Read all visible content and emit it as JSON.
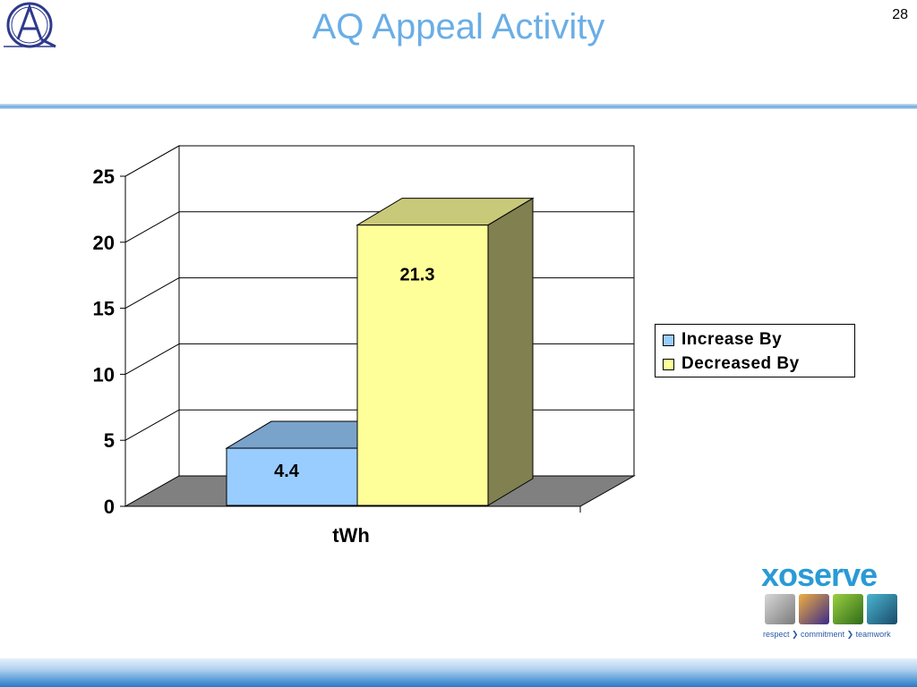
{
  "slide": {
    "title": "AQ Appeal Activity",
    "page_number": "28"
  },
  "logos": {
    "aq_logo": "aq-monogram-logo",
    "xoserve_word": "xoserve",
    "xoserve_tagline": "respect ❯ commitment ❯ teamwork"
  },
  "colors": {
    "title": "#6aaee6",
    "increase_front": "#99ccff",
    "increase_top": "#7aa3cc",
    "decrease_front": "#ffff99",
    "decrease_top": "#c9c97a",
    "decrease_side": "#808050",
    "floor": "#808080"
  },
  "chart_data": {
    "type": "bar",
    "categories": [
      "tWh"
    ],
    "series": [
      {
        "name": "Increase By",
        "values": [
          4.4
        ]
      },
      {
        "name": "Decreased By",
        "values": [
          21.3
        ]
      }
    ],
    "data_labels": [
      "4.4",
      "21.3"
    ],
    "xlabel": "",
    "ylabel": "",
    "ylim": [
      0,
      25
    ],
    "yticks": [
      "0",
      "5",
      "10",
      "15",
      "20",
      "25"
    ],
    "grid": true,
    "legend_position": "right",
    "style": "3d"
  }
}
